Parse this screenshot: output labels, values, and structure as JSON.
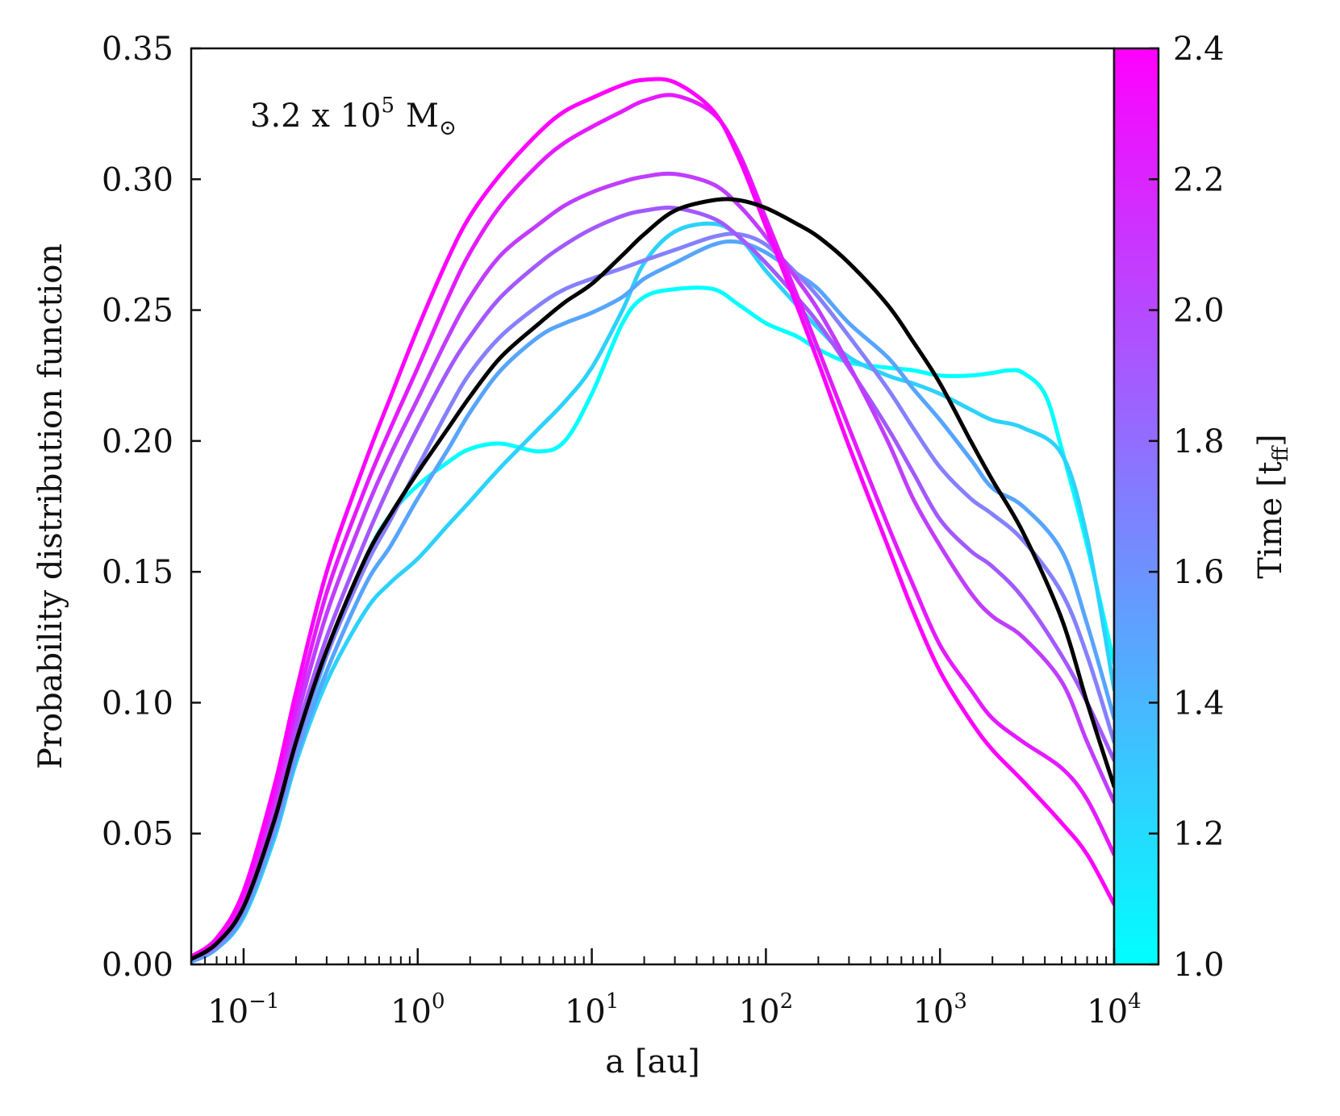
{
  "chart_data": {
    "type": "line",
    "annotation": {
      "text": "3.2 x 10",
      "exponent": "5",
      "unit": "M",
      "unit_symbol": "⊙"
    },
    "xlabel": "a [au]",
    "ylabel": "Probability distribution function",
    "x_scale": "log",
    "xlim": [
      0.05,
      10000
    ],
    "ylim": [
      0,
      0.35
    ],
    "x_ticks": [
      {
        "base": "10",
        "exp": "−1",
        "value": 0.1
      },
      {
        "base": "10",
        "exp": "0",
        "value": 1
      },
      {
        "base": "10",
        "exp": "1",
        "value": 10
      },
      {
        "base": "10",
        "exp": "2",
        "value": 100
      },
      {
        "base": "10",
        "exp": "3",
        "value": 1000
      },
      {
        "base": "10",
        "exp": "4",
        "value": 10000
      }
    ],
    "y_ticks": [
      "0.00",
      "0.05",
      "0.10",
      "0.15",
      "0.20",
      "0.25",
      "0.30",
      "0.35"
    ],
    "grid": false,
    "colorbar": {
      "label": "Time [t",
      "label_sub": "ff",
      "label_close": "]",
      "range": [
        1.0,
        2.4
      ],
      "ticks": [
        "1.0",
        "1.2",
        "1.4",
        "1.6",
        "1.8",
        "2.0",
        "2.2",
        "2.4"
      ],
      "color_low": "#00ffff",
      "color_high": "#ff00ff"
    },
    "series": [
      {
        "time": 1.0,
        "color": "#00ffff",
        "x": [
          0.05,
          0.07,
          0.1,
          0.15,
          0.2,
          0.3,
          0.5,
          0.7,
          1,
          1.5,
          2,
          3,
          5,
          7,
          10,
          15,
          20,
          30,
          50,
          70,
          100,
          150,
          200,
          300,
          500,
          700,
          1000,
          1500,
          2000,
          2500,
          3000,
          4000,
          5000,
          7000,
          10000
        ],
        "y": [
          0.002,
          0.007,
          0.02,
          0.05,
          0.08,
          0.118,
          0.155,
          0.172,
          0.183,
          0.192,
          0.197,
          0.199,
          0.196,
          0.2,
          0.218,
          0.245,
          0.255,
          0.258,
          0.258,
          0.252,
          0.245,
          0.24,
          0.235,
          0.23,
          0.228,
          0.227,
          0.225,
          0.225,
          0.226,
          0.227,
          0.226,
          0.218,
          0.197,
          0.16,
          0.115
        ]
      },
      {
        "time": 1.2,
        "color": "#2cd2fc",
        "x": [
          0.05,
          0.07,
          0.1,
          0.15,
          0.2,
          0.3,
          0.5,
          0.7,
          1,
          1.5,
          2,
          3,
          5,
          7,
          10,
          15,
          20,
          30,
          50,
          70,
          100,
          150,
          200,
          300,
          500,
          700,
          1000,
          1500,
          2000,
          3000,
          5000,
          7000,
          10000
        ],
        "y": [
          0.001,
          0.006,
          0.018,
          0.048,
          0.077,
          0.108,
          0.135,
          0.146,
          0.155,
          0.168,
          0.177,
          0.19,
          0.205,
          0.215,
          0.228,
          0.25,
          0.268,
          0.28,
          0.283,
          0.278,
          0.265,
          0.252,
          0.243,
          0.232,
          0.225,
          0.222,
          0.218,
          0.212,
          0.208,
          0.205,
          0.195,
          0.163,
          0.105
        ]
      },
      {
        "time": 1.4,
        "color": "#56a5fd",
        "x": [
          0.05,
          0.07,
          0.1,
          0.15,
          0.2,
          0.3,
          0.5,
          0.7,
          1,
          1.5,
          2,
          3,
          5,
          7,
          10,
          15,
          20,
          30,
          50,
          70,
          100,
          150,
          200,
          300,
          500,
          700,
          1000,
          1500,
          2000,
          3000,
          5000,
          7000,
          10000
        ],
        "y": [
          0.001,
          0.006,
          0.019,
          0.05,
          0.079,
          0.112,
          0.145,
          0.16,
          0.178,
          0.197,
          0.211,
          0.227,
          0.24,
          0.245,
          0.249,
          0.255,
          0.262,
          0.268,
          0.275,
          0.276,
          0.272,
          0.264,
          0.258,
          0.245,
          0.232,
          0.22,
          0.208,
          0.193,
          0.182,
          0.175,
          0.158,
          0.13,
          0.094
        ]
      },
      {
        "time": 1.6,
        "color": "#8580fe",
        "x": [
          0.05,
          0.07,
          0.1,
          0.15,
          0.2,
          0.3,
          0.5,
          0.7,
          1,
          1.5,
          2,
          3,
          5,
          7,
          10,
          15,
          20,
          30,
          50,
          70,
          100,
          150,
          200,
          300,
          500,
          700,
          1000,
          1500,
          2000,
          3000,
          5000,
          7000,
          10000
        ],
        "y": [
          0.002,
          0.007,
          0.021,
          0.053,
          0.083,
          0.118,
          0.152,
          0.17,
          0.19,
          0.212,
          0.226,
          0.24,
          0.252,
          0.258,
          0.262,
          0.266,
          0.269,
          0.273,
          0.278,
          0.279,
          0.275,
          0.264,
          0.255,
          0.24,
          0.22,
          0.205,
          0.19,
          0.178,
          0.172,
          0.162,
          0.142,
          0.118,
          0.085
        ]
      },
      {
        "time": 1.8,
        "color": "#a259fe",
        "x": [
          0.05,
          0.07,
          0.1,
          0.15,
          0.2,
          0.3,
          0.5,
          0.7,
          1,
          1.5,
          2,
          3,
          5,
          7,
          10,
          15,
          20,
          30,
          50,
          70,
          100,
          150,
          200,
          300,
          500,
          700,
          1000,
          1500,
          2000,
          3000,
          5000,
          7000,
          10000
        ],
        "y": [
          0.002,
          0.008,
          0.023,
          0.057,
          0.088,
          0.125,
          0.162,
          0.184,
          0.205,
          0.227,
          0.24,
          0.255,
          0.268,
          0.275,
          0.281,
          0.286,
          0.288,
          0.289,
          0.285,
          0.278,
          0.268,
          0.255,
          0.245,
          0.228,
          0.205,
          0.188,
          0.17,
          0.158,
          0.152,
          0.14,
          0.118,
          0.1,
          0.078
        ]
      },
      {
        "time": 2.0,
        "color": "#c03dfe",
        "x": [
          0.05,
          0.07,
          0.1,
          0.15,
          0.2,
          0.3,
          0.5,
          0.7,
          1,
          1.5,
          2,
          3,
          5,
          7,
          10,
          15,
          20,
          30,
          50,
          70,
          100,
          150,
          200,
          300,
          500,
          700,
          1000,
          1500,
          2000,
          3000,
          5000,
          7000,
          10000
        ],
        "y": [
          0.002,
          0.008,
          0.024,
          0.06,
          0.093,
          0.134,
          0.173,
          0.195,
          0.216,
          0.24,
          0.255,
          0.271,
          0.283,
          0.29,
          0.295,
          0.299,
          0.301,
          0.302,
          0.298,
          0.29,
          0.278,
          0.262,
          0.25,
          0.229,
          0.2,
          0.178,
          0.16,
          0.142,
          0.133,
          0.125,
          0.108,
          0.085,
          0.062
        ]
      },
      {
        "time": 2.2,
        "color": "#e41bff",
        "x": [
          0.05,
          0.07,
          0.1,
          0.15,
          0.2,
          0.3,
          0.5,
          0.7,
          1,
          1.5,
          2,
          3,
          5,
          7,
          10,
          15,
          20,
          30,
          50,
          70,
          100,
          150,
          200,
          300,
          500,
          700,
          1000,
          1500,
          2000,
          3000,
          5000,
          7000,
          10000
        ],
        "y": [
          0.002,
          0.009,
          0.026,
          0.064,
          0.098,
          0.142,
          0.182,
          0.205,
          0.228,
          0.255,
          0.272,
          0.29,
          0.306,
          0.314,
          0.32,
          0.326,
          0.33,
          0.332,
          0.325,
          0.31,
          0.285,
          0.256,
          0.235,
          0.205,
          0.168,
          0.145,
          0.122,
          0.105,
          0.094,
          0.085,
          0.075,
          0.063,
          0.042
        ]
      },
      {
        "time": 2.4,
        "color": "#ff00ff",
        "x": [
          0.05,
          0.07,
          0.1,
          0.15,
          0.2,
          0.3,
          0.5,
          0.7,
          1,
          1.5,
          2,
          3,
          5,
          7,
          10,
          15,
          20,
          30,
          50,
          70,
          100,
          150,
          200,
          300,
          500,
          700,
          1000,
          1500,
          2000,
          3000,
          5000,
          7000,
          10000
        ],
        "y": [
          0.003,
          0.01,
          0.028,
          0.068,
          0.104,
          0.15,
          0.192,
          0.217,
          0.243,
          0.27,
          0.286,
          0.302,
          0.318,
          0.326,
          0.331,
          0.336,
          0.338,
          0.337,
          0.326,
          0.308,
          0.282,
          0.252,
          0.23,
          0.198,
          0.16,
          0.135,
          0.112,
          0.093,
          0.082,
          0.07,
          0.054,
          0.042,
          0.023
        ]
      },
      {
        "time": null,
        "color": "#000000",
        "x": [
          0.05,
          0.07,
          0.1,
          0.15,
          0.2,
          0.3,
          0.5,
          0.7,
          1,
          1.5,
          2,
          3,
          5,
          7,
          10,
          15,
          20,
          30,
          50,
          70,
          100,
          150,
          200,
          300,
          500,
          700,
          1000,
          1500,
          2000,
          3000,
          5000,
          7000,
          10000
        ],
        "y": [
          0.002,
          0.008,
          0.022,
          0.055,
          0.085,
          0.12,
          0.155,
          0.172,
          0.188,
          0.205,
          0.217,
          0.232,
          0.245,
          0.253,
          0.26,
          0.271,
          0.279,
          0.288,
          0.292,
          0.292,
          0.289,
          0.283,
          0.278,
          0.268,
          0.252,
          0.238,
          0.222,
          0.2,
          0.185,
          0.165,
          0.132,
          0.1,
          0.068
        ]
      }
    ]
  }
}
